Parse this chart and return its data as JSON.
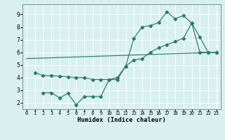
{
  "xlabel": "Humidex (Indice chaleur)",
  "bg_color": "#d8f0f0",
  "grid_color": "#ffffff",
  "line_color": "#2a7a6a",
  "xlim": [
    -0.5,
    23.5
  ],
  "ylim": [
    1.5,
    9.8
  ],
  "xticks": [
    0,
    1,
    2,
    3,
    4,
    5,
    6,
    7,
    8,
    9,
    10,
    11,
    12,
    13,
    14,
    15,
    16,
    17,
    18,
    19,
    20,
    21,
    22,
    23
  ],
  "yticks": [
    2,
    3,
    4,
    5,
    6,
    7,
    8,
    9
  ],
  "line1_x": [
    0,
    23
  ],
  "line1_y": [
    5.5,
    6.0
  ],
  "line2_x": [
    1,
    2,
    3,
    4,
    5,
    6,
    7,
    8,
    9,
    10,
    11,
    12,
    13,
    14,
    15,
    16,
    17,
    18,
    19,
    20,
    21,
    22,
    23
  ],
  "line2_y": [
    4.4,
    4.15,
    4.15,
    4.1,
    4.05,
    4.0,
    4.0,
    3.85,
    3.85,
    3.85,
    4.0,
    4.9,
    5.4,
    5.5,
    6.0,
    6.35,
    6.6,
    6.85,
    7.1,
    8.3,
    6.0,
    6.0,
    6.0
  ],
  "line3_x": [
    2,
    3,
    4,
    5,
    6,
    7,
    8,
    9,
    10,
    11,
    12,
    13,
    14,
    15,
    16,
    17,
    18,
    19,
    20,
    21,
    22,
    23
  ],
  "line3_y": [
    2.8,
    2.8,
    2.4,
    2.75,
    1.85,
    2.5,
    2.5,
    2.5,
    3.85,
    3.85,
    4.9,
    7.1,
    8.0,
    8.1,
    8.35,
    9.2,
    8.65,
    8.9,
    8.3,
    7.2,
    6.0,
    6.0
  ]
}
